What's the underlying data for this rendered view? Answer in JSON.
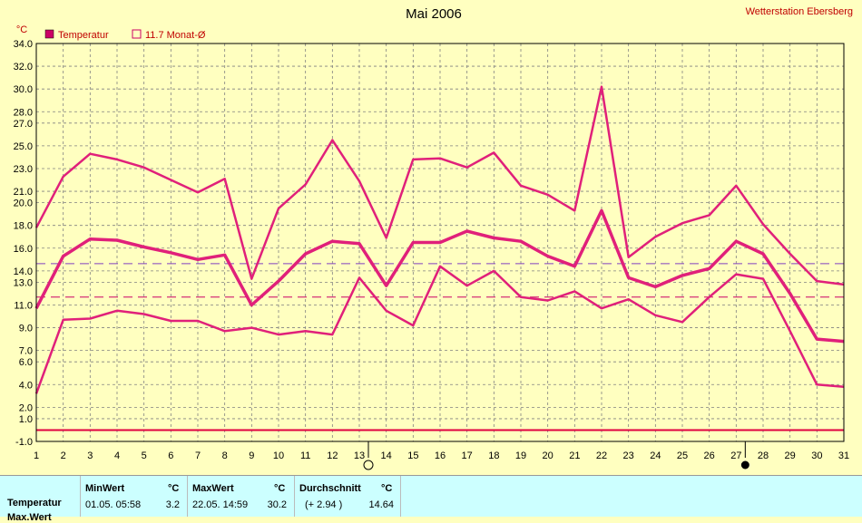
{
  "chart_data": {
    "type": "line",
    "title": "Mai 2006",
    "station": "Wetterstation Ebersberg",
    "y_unit": "°C",
    "legend": [
      {
        "label": "Temperatur",
        "color": "#cc0066",
        "style": "filled-square"
      },
      {
        "label": "11.7 Monat-Ø",
        "color": "#cc0066",
        "style": "hollow-square"
      }
    ],
    "x": [
      1,
      2,
      3,
      4,
      5,
      6,
      7,
      8,
      9,
      10,
      11,
      12,
      13,
      14,
      15,
      16,
      17,
      18,
      19,
      20,
      21,
      22,
      23,
      24,
      25,
      26,
      27,
      28,
      29,
      30,
      31
    ],
    "x_ticks": [
      "1",
      "2",
      "3",
      "4",
      "5",
      "6",
      "7",
      "8",
      "9",
      "10",
      "11",
      "12",
      "13",
      "14",
      "15",
      "16",
      "17",
      "18",
      "19",
      "20",
      "21",
      "22",
      "23",
      "24",
      "25",
      "26",
      "27",
      "28",
      "29",
      "30",
      "31"
    ],
    "y_ticks": [
      "34.0",
      "32.0",
      "30.0",
      "28.0",
      "27.0",
      "25.0",
      "23.0",
      "21.0",
      "20.0",
      "18.0",
      "16.0",
      "14.0",
      "13.0",
      "11.0",
      "9.0",
      "7.0",
      "6.0",
      "4.0",
      "2.0",
      "1.0",
      "-1.0"
    ],
    "ylim": [
      -1,
      34
    ],
    "grid": true,
    "series": [
      {
        "role": "max",
        "width": 2.5,
        "values": [
          17.8,
          22.3,
          24.3,
          23.8,
          23.1,
          22.0,
          20.9,
          22.1,
          13.3,
          19.5,
          21.6,
          25.5,
          21.9,
          16.9,
          23.8,
          23.9,
          23.1,
          24.4,
          21.5,
          20.7,
          19.3,
          30.2,
          15.2,
          17.0,
          18.2,
          18.9,
          21.5,
          18.1,
          15.5,
          13.1,
          12.8
        ]
      },
      {
        "role": "avg",
        "width": 3.5,
        "values": [
          10.7,
          15.3,
          16.8,
          16.7,
          16.1,
          15.6,
          15.0,
          15.4,
          11.0,
          13.1,
          15.5,
          16.6,
          16.4,
          12.7,
          16.5,
          16.5,
          17.5,
          16.9,
          16.6,
          15.3,
          14.4,
          19.3,
          13.4,
          12.6,
          13.6,
          14.2,
          16.6,
          15.5,
          12.0,
          8.0,
          7.8
        ]
      },
      {
        "role": "min",
        "width": 2.5,
        "values": [
          3.2,
          9.7,
          9.8,
          10.5,
          10.2,
          9.6,
          9.6,
          8.7,
          9.0,
          8.4,
          8.7,
          8.4,
          13.4,
          10.5,
          9.2,
          14.4,
          12.7,
          14.0,
          11.7,
          11.4,
          12.2,
          10.7,
          11.5,
          10.1,
          9.5,
          11.7,
          13.7,
          13.3,
          8.7,
          4.0,
          3.8
        ]
      }
    ],
    "reference_lines": [
      {
        "value": 14.64,
        "style": "dashed",
        "color": "#8040c0"
      },
      {
        "value": 11.7,
        "style": "dashed",
        "color": "#cc0066"
      },
      {
        "value": 0,
        "style": "solid",
        "color": "#e00040"
      }
    ],
    "moon_markers": [
      {
        "day": 13,
        "phase": "full-moon"
      },
      {
        "day": 27,
        "phase": "new-moon"
      }
    ]
  },
  "stats": {
    "row_label": "Temperatur",
    "row2_label": "Max.Wert",
    "min": {
      "header": "MinWert",
      "unit": "°C",
      "datetime": "01.05.  05:58",
      "value": "3.2"
    },
    "max": {
      "header": "MaxWert",
      "unit": "°C",
      "datetime": "22.05.  14:59",
      "value": "30.2"
    },
    "avg": {
      "header": "Durchschnitt",
      "unit": "°C",
      "delta": "(+ 2.94 )",
      "value": "14.64"
    }
  }
}
